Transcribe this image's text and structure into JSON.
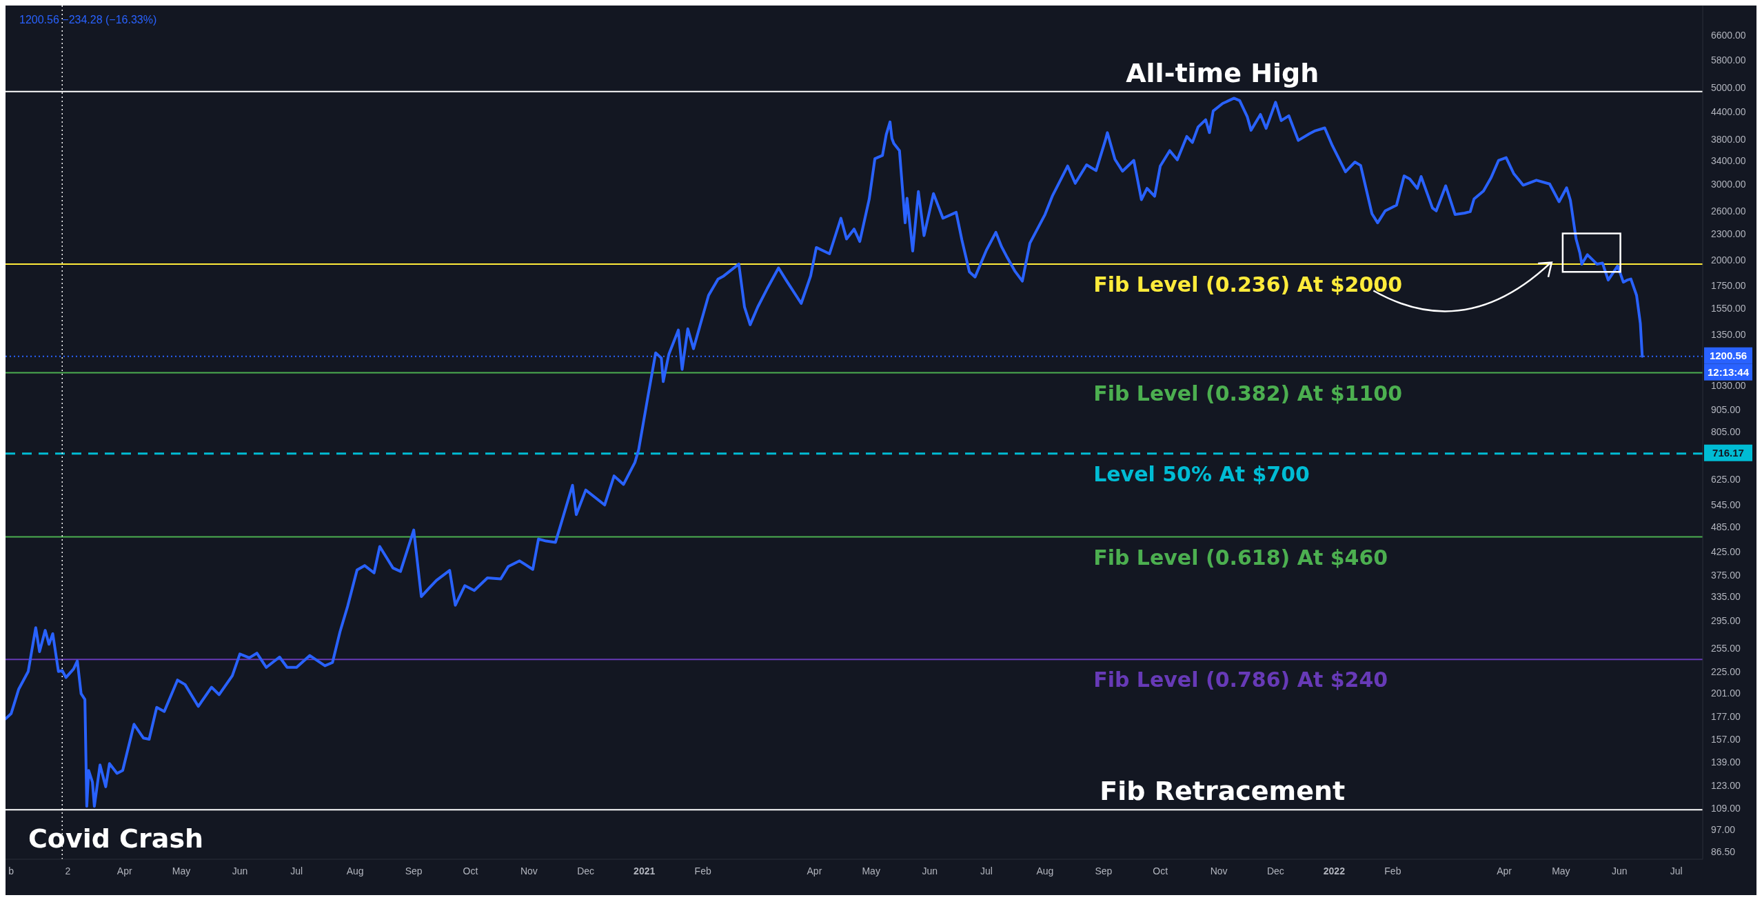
{
  "chart_data": {
    "type": "line",
    "subtitle": "1200.56  −234.28 (−16.33%)",
    "x": [
      "2020-01-29",
      "2020-02-01",
      "2020-02-05",
      "2020-02-10",
      "2020-02-14",
      "2020-02-16",
      "2020-02-19",
      "2020-02-21",
      "2020-02-23",
      "2020-02-26",
      "2020-02-28",
      "2020-03-01",
      "2020-03-05",
      "2020-03-07",
      "2020-03-09",
      "2020-03-11",
      "2020-03-12",
      "2020-03-13",
      "2020-03-15",
      "2020-03-16",
      "2020-03-19",
      "2020-03-22",
      "2020-03-24",
      "2020-03-28",
      "2020-03-31",
      "2020-04-06",
      "2020-04-11",
      "2020-04-14",
      "2020-04-18",
      "2020-04-22",
      "2020-04-29",
      "2020-05-03",
      "2020-05-10",
      "2020-05-17",
      "2020-05-21",
      "2020-05-28",
      "2020-06-01",
      "2020-06-06",
      "2020-06-10",
      "2020-06-15",
      "2020-06-22",
      "2020-06-26",
      "2020-07-01",
      "2020-07-08",
      "2020-07-16",
      "2020-07-20",
      "2020-07-24",
      "2020-07-28",
      "2020-08-02",
      "2020-08-06",
      "2020-08-11",
      "2020-08-14",
      "2020-08-21",
      "2020-08-25",
      "2020-09-01",
      "2020-09-05",
      "2020-09-09",
      "2020-09-13",
      "2020-09-20",
      "2020-09-23",
      "2020-09-28",
      "2020-10-03",
      "2020-10-10",
      "2020-10-17",
      "2020-10-21",
      "2020-10-27",
      "2020-11-03",
      "2020-11-06",
      "2020-11-10",
      "2020-11-15",
      "2020-11-24",
      "2020-11-26",
      "2020-12-01",
      "2020-12-11",
      "2020-12-16",
      "2020-12-21",
      "2020-12-27",
      "2020-12-29",
      "2021-01-03",
      "2021-01-07",
      "2021-01-10",
      "2021-01-11",
      "2021-01-14",
      "2021-01-19",
      "2021-01-21",
      "2021-01-24",
      "2021-01-27",
      "2021-02-04",
      "2021-02-09",
      "2021-02-12",
      "2021-02-20",
      "2021-02-23",
      "2021-02-26",
      "2021-03-02",
      "2021-03-07",
      "2021-03-13",
      "2021-03-17",
      "2021-03-25",
      "2021-03-30",
      "2021-04-02",
      "2021-04-09",
      "2021-04-15",
      "2021-04-18",
      "2021-04-22",
      "2021-04-25",
      "2021-04-30",
      "2021-05-03",
      "2021-05-07",
      "2021-05-09",
      "2021-05-11",
      "2021-05-12",
      "2021-05-13",
      "2021-05-16",
      "2021-05-19",
      "2021-05-20",
      "2021-05-23",
      "2021-05-26",
      "2021-05-29",
      "2021-06-03",
      "2021-06-08",
      "2021-06-15",
      "2021-06-18",
      "2021-06-22",
      "2021-06-25",
      "2021-07-01",
      "2021-07-06",
      "2021-07-09",
      "2021-07-12",
      "2021-07-16",
      "2021-07-20",
      "2021-07-24",
      "2021-08-01",
      "2021-08-05",
      "2021-08-13",
      "2021-08-17",
      "2021-08-23",
      "2021-08-28",
      "2021-09-02",
      "2021-09-03",
      "2021-09-07",
      "2021-09-11",
      "2021-09-17",
      "2021-09-21",
      "2021-09-24",
      "2021-09-28",
      "2021-10-01",
      "2021-10-06",
      "2021-10-10",
      "2021-10-15",
      "2021-10-18",
      "2021-10-21",
      "2021-10-25",
      "2021-10-27",
      "2021-10-29",
      "2021-11-03",
      "2021-11-09",
      "2021-11-12",
      "2021-11-16",
      "2021-11-18",
      "2021-11-23",
      "2021-11-26",
      "2021-12-01",
      "2021-12-04",
      "2021-12-08",
      "2021-12-13",
      "2021-12-19",
      "2021-12-22",
      "2021-12-27",
      "2021-12-31",
      "2022-01-07",
      "2022-01-12",
      "2022-01-15",
      "2022-01-21",
      "2022-01-24",
      "2022-01-28",
      "2022-02-03",
      "2022-02-07",
      "2022-02-10",
      "2022-02-14",
      "2022-02-16",
      "2022-02-22",
      "2022-02-24",
      "2022-03-01",
      "2022-03-06",
      "2022-03-11",
      "2022-03-14",
      "2022-03-16",
      "2022-03-21",
      "2022-03-25",
      "2022-03-29",
      "2022-04-02",
      "2022-04-06",
      "2022-04-11",
      "2022-04-18",
      "2022-04-25",
      "2022-04-30",
      "2022-05-04",
      "2022-05-06",
      "2022-05-09",
      "2022-05-11",
      "2022-05-12",
      "2022-05-15",
      "2022-05-20",
      "2022-05-23",
      "2022-05-26",
      "2022-05-31",
      "2022-06-03",
      "2022-06-05",
      "2022-06-07",
      "2022-06-10",
      "2022-06-12",
      "2022-06-13"
    ],
    "series": [
      {
        "color": "#2962ff",
        "values": [
          175,
          180,
          205,
          225,
          284,
          250,
          280,
          260,
          275,
          225,
          226,
          218,
          228,
          238,
          200,
          194,
          110,
          133,
          125,
          110,
          137,
          122,
          138,
          131,
          133,
          170,
          158,
          157,
          186,
          182,
          215,
          210,
          187,
          207,
          199,
          220,
          247,
          242,
          248,
          230,
          243,
          230,
          230,
          245,
          232,
          236,
          278,
          318,
          386,
          395,
          380,
          437,
          390,
          383,
          477,
          335,
          350,
          365,
          385,
          320,
          355,
          346,
          370,
          368,
          393,
          405,
          387,
          455,
          450,
          447,
          605,
          518,
          590,
          545,
          636,
          608,
          683,
          731,
          975,
          1223,
          1190,
          1050,
          1215,
          1380,
          1120,
          1390,
          1250,
          1660,
          1810,
          1840,
          1960,
          1560,
          1420,
          1560,
          1720,
          1920,
          1800,
          1590,
          1840,
          2140,
          2070,
          2500,
          2240,
          2360,
          2210,
          2770,
          3430,
          3490,
          3900,
          4170,
          3820,
          3720,
          3580,
          2440,
          2780,
          2100,
          2880,
          2280,
          2850,
          2500,
          2580,
          2230,
          1880,
          1830,
          2110,
          2320,
          2150,
          2030,
          1890,
          1790,
          2190,
          2550,
          2820,
          3300,
          3010,
          3320,
          3220,
          3790,
          3940,
          3420,
          3210,
          3400,
          2760,
          2930,
          2810,
          3300,
          3580,
          3410,
          3860,
          3740,
          4060,
          4220,
          3940,
          4420,
          4600,
          4730,
          4670,
          4290,
          3990,
          4340,
          4030,
          4630,
          4200,
          4310,
          3780,
          3920,
          3980,
          4040,
          3680,
          3200,
          3370,
          3310,
          2560,
          2440,
          2600,
          2680,
          3130,
          3080,
          2930,
          3120,
          2640,
          2600,
          2970,
          2550,
          2570,
          2590,
          2770,
          2890,
          3100,
          3400,
          3450,
          3170,
          2980,
          3060,
          3000,
          2730,
          2940,
          2750,
          2240,
          2080,
          1960,
          2060,
          1960,
          1970,
          1800,
          1940,
          1780,
          1800,
          1810,
          1660,
          1430,
          1200.56
        ]
      }
    ],
    "log": true,
    "grid": false,
    "line_style": "solid",
    "xlim": [
      "2020-01-29",
      "2022-07-15"
    ],
    "xticks": [
      {
        "value": "2020-02-01",
        "label": "b"
      },
      {
        "value": "2020-03-02",
        "label": "2"
      },
      {
        "value": "2020-04-01",
        "label": "Apr"
      },
      {
        "value": "2020-05-01",
        "label": "May"
      },
      {
        "value": "2020-06-01",
        "label": "Jun"
      },
      {
        "value": "2020-07-01",
        "label": "Jul"
      },
      {
        "value": "2020-08-01",
        "label": "Aug"
      },
      {
        "value": "2020-09-01",
        "label": "Sep"
      },
      {
        "value": "2020-10-01",
        "label": "Oct"
      },
      {
        "value": "2020-11-01",
        "label": "Nov"
      },
      {
        "value": "2020-12-01",
        "label": "Dec"
      },
      {
        "value": "2021-01-01",
        "label": "2021"
      },
      {
        "value": "2021-02-01",
        "label": "Feb"
      },
      {
        "value": "2021-04-01",
        "label": "Apr"
      },
      {
        "value": "2021-05-01",
        "label": "May"
      },
      {
        "value": "2021-06-01",
        "label": "Jun"
      },
      {
        "value": "2021-07-01",
        "label": "Jul"
      },
      {
        "value": "2021-08-01",
        "label": "Aug"
      },
      {
        "value": "2021-09-01",
        "label": "Sep"
      },
      {
        "value": "2021-10-01",
        "label": "Oct"
      },
      {
        "value": "2021-11-01",
        "label": "Nov"
      },
      {
        "value": "2021-12-01",
        "label": "Dec"
      },
      {
        "value": "2022-01-01",
        "label": "2022"
      },
      {
        "value": "2022-02-01",
        "label": "Feb"
      },
      {
        "value": "2022-04-01",
        "label": "Apr"
      },
      {
        "value": "2022-05-01",
        "label": "May"
      },
      {
        "value": "2022-06-01",
        "label": "Jun"
      },
      {
        "value": "2022-07-01",
        "label": "Jul"
      }
    ],
    "ylim": [
      83,
      7740
    ],
    "yticks": [
      {
        "value": 6600,
        "label": "6600.00"
      },
      {
        "value": 5800,
        "label": "5800.00"
      },
      {
        "value": 5000,
        "label": "5000.00"
      },
      {
        "value": 4400,
        "label": "4400.00"
      },
      {
        "value": 3800,
        "label": "3800.00"
      },
      {
        "value": 3400,
        "label": "3400.00"
      },
      {
        "value": 3000,
        "label": "3000.00"
      },
      {
        "value": 2600,
        "label": "2600.00"
      },
      {
        "value": 2300,
        "label": "2300.00"
      },
      {
        "value": 2000,
        "label": "2000.00"
      },
      {
        "value": 1750,
        "label": "1750.00"
      },
      {
        "value": 1550,
        "label": "1550.00"
      },
      {
        "value": 1350,
        "label": "1350.00"
      },
      {
        "value": 1030,
        "label": "1030.00"
      },
      {
        "value": 905,
        "label": "905.00"
      },
      {
        "value": 805,
        "label": "805.00"
      },
      {
        "value": 625,
        "label": "625.00"
      },
      {
        "value": 545,
        "label": "545.00"
      },
      {
        "value": 485,
        "label": "485.00"
      },
      {
        "value": 425,
        "label": "425.00"
      },
      {
        "value": 375,
        "label": "375.00"
      },
      {
        "value": 335,
        "label": "335.00"
      },
      {
        "value": 295,
        "label": "295.00"
      },
      {
        "value": 255,
        "label": "255.00"
      },
      {
        "value": 225,
        "label": "225.00"
      },
      {
        "value": 201,
        "label": "201.00"
      },
      {
        "value": 177,
        "label": "177.00"
      },
      {
        "value": 157,
        "label": "157.00"
      },
      {
        "value": 139,
        "label": "139.00"
      },
      {
        "value": 123,
        "label": "123.00"
      },
      {
        "value": 109,
        "label": "109.00"
      },
      {
        "value": 97,
        "label": "97.00"
      },
      {
        "value": 86.5,
        "label": "86.50"
      }
    ],
    "ref_lines": [
      {
        "axis": "y",
        "value": 4900,
        "label": "All-time High",
        "color": "#ffffff",
        "line_style": "solid"
      },
      {
        "axis": "y",
        "value": 1960,
        "label": "Fib Level (0.236) At $2000",
        "color": "#ffeb3b",
        "line_style": "solid"
      },
      {
        "axis": "y",
        "value": 1200.56,
        "color": "#2962ff",
        "line_style": "dotted"
      },
      {
        "axis": "y",
        "value": 1100,
        "label": "Fib Level (0.382) At $1100",
        "color": "#4caf50",
        "line_style": "solid"
      },
      {
        "axis": "y",
        "value": 716.17,
        "label": "Level 50% At $700",
        "color": "#00bcd4",
        "line_style": "dashed"
      },
      {
        "axis": "y",
        "value": 460,
        "label": "Fib Level (0.618) At $460",
        "color": "#4caf50",
        "line_style": "solid"
      },
      {
        "axis": "y",
        "value": 240,
        "label": "Fib Level (0.786) At $240",
        "color": "#673ab7",
        "line_style": "solid"
      },
      {
        "axis": "y",
        "value": 108,
        "label": "Fib Retracement",
        "color": "#ffffff",
        "line_style": "solid"
      },
      {
        "axis": "x",
        "value": "2020-02-28",
        "color": "#ffffff",
        "line_style": "dotted"
      }
    ],
    "annotations": [
      {
        "text": "Covid Crash",
        "x": "2020-03-12",
        "y": 110
      },
      "1200.56",
      "12:13:44",
      "716.17"
    ]
  }
}
